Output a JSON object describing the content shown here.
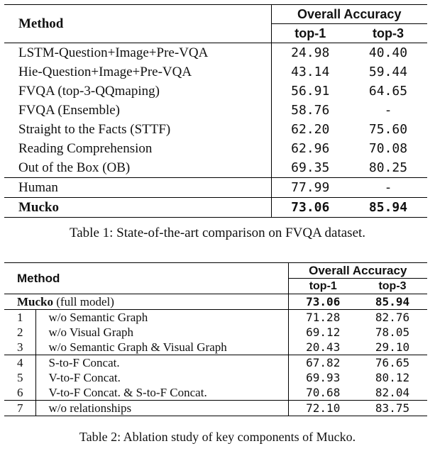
{
  "table1": {
    "header": {
      "method": "Method",
      "group": "Overall Accuracy",
      "col1": "top-1",
      "col2": "top-3"
    },
    "rows": [
      {
        "method": "LSTM-Question+Image+Pre-VQA",
        "top1": "24.98",
        "top3": "40.40"
      },
      {
        "method": "Hie-Question+Image+Pre-VQA",
        "top1": "43.14",
        "top3": "59.44"
      },
      {
        "method": "FVQA (top-3-QQmaping)",
        "top1": "56.91",
        "top3": "64.65"
      },
      {
        "method": "FVQA (Ensemble)",
        "top1": "58.76",
        "top3": "-"
      },
      {
        "method": "Straight to the Facts (STTF)",
        "top1": "62.20",
        "top3": "75.60"
      },
      {
        "method": "Reading Comprehension",
        "top1": "62.96",
        "top3": "70.08"
      },
      {
        "method": "Out of the Box (OB)",
        "top1": "69.35",
        "top3": "80.25"
      }
    ],
    "human": {
      "method": "Human",
      "top1": "77.99",
      "top3": "-"
    },
    "ours": {
      "method": "Mucko",
      "top1": "73.06",
      "top3": "85.94"
    },
    "caption": "Table 1: State-of-the-art comparison on FVQA dataset."
  },
  "table2": {
    "header": {
      "method": "Method",
      "group": "Overall Accuracy",
      "col1": "top-1",
      "col2": "top-3"
    },
    "full": {
      "name": "Mucko",
      "suffix": " (full model)",
      "top1": "73.06",
      "top3": "85.94"
    },
    "rows": [
      {
        "id": "1",
        "desc": "w/o Semantic Graph",
        "top1": "71.28",
        "top3": "82.76"
      },
      {
        "id": "2",
        "desc": "w/o Visual Graph",
        "top1": "69.12",
        "top3": "78.05"
      },
      {
        "id": "3",
        "desc": "w/o Semantic Graph & Visual Graph",
        "top1": "20.43",
        "top3": "29.10"
      },
      {
        "id": "4",
        "desc": "S-to-F Concat.",
        "top1": "67.82",
        "top3": "76.65"
      },
      {
        "id": "5",
        "desc": "V-to-F Concat.",
        "top1": "69.93",
        "top3": "80.12"
      },
      {
        "id": "6",
        "desc": "V-to-F Concat. & S-to-F Concat.",
        "top1": "70.68",
        "top3": "82.04"
      },
      {
        "id": "7",
        "desc": "w/o relationships",
        "top1": "72.10",
        "top3": "83.75"
      }
    ],
    "caption": "Table 2: Ablation study of key components of Mucko."
  }
}
